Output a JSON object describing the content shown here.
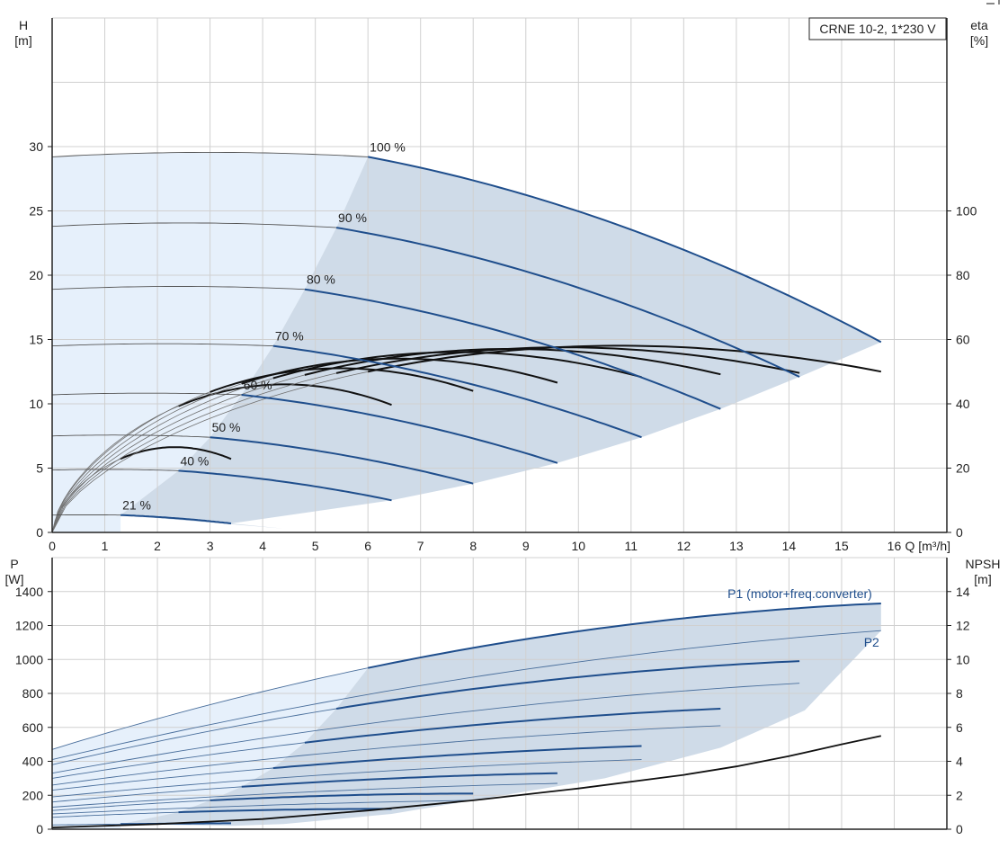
{
  "colors": {
    "accent": "#1f4e8c",
    "region_light": "#e6f0fb",
    "region_dark": "#cfdbe8",
    "grid": "#d0d0d0",
    "black": "#111111",
    "thin": "#707070"
  },
  "chart_data": [
    {
      "type": "line",
      "title": "CRNE 10-2, 1*230 V",
      "xlabel": "Q [m³/h]",
      "ylabel": "H\n[m]",
      "y2label": "eta\n[%]",
      "xlim": [
        0,
        17
      ],
      "ylim": [
        0,
        40
      ],
      "y2lim": [
        0,
        160
      ],
      "x_ticks": [
        0,
        1,
        2,
        3,
        4,
        5,
        6,
        7,
        8,
        9,
        10,
        11,
        12,
        13,
        14,
        15,
        16
      ],
      "x_tick_labels": [
        "0",
        "1",
        "2",
        "3",
        "4",
        "5",
        "6",
        "7",
        "8",
        "9",
        "10",
        "11",
        "12",
        "13",
        "14",
        "15",
        "16"
      ],
      "y_ticks": [
        0,
        5,
        10,
        15,
        20,
        25,
        30
      ],
      "y_tick_labels": [
        "0",
        "5",
        "10",
        "15",
        "20",
        "25",
        "30"
      ],
      "y2_ticks": [
        0,
        20,
        40,
        60,
        80,
        100
      ],
      "y2_tick_labels": [
        "0",
        "20",
        "40",
        "60",
        "80",
        "100"
      ],
      "grid": true,
      "head_curves": [
        {
          "name": "100 %",
          "q0": 0,
          "q_lo": 6.0,
          "q_hi": 15.75,
          "h0": 29.2,
          "h_lo": 29.2,
          "h_hi": 14.8
        },
        {
          "name": "90 %",
          "q0": 0,
          "q_lo": 5.4,
          "q_hi": 14.2,
          "h0": 23.8,
          "h_lo": 23.7,
          "h_hi": 12.1
        },
        {
          "name": "80 %",
          "q0": 0,
          "q_lo": 4.8,
          "q_hi": 12.7,
          "h0": 18.9,
          "h_lo": 18.9,
          "h_hi": 9.6
        },
        {
          "name": "70 %",
          "q0": 0,
          "q_lo": 4.2,
          "q_hi": 11.2,
          "h0": 14.5,
          "h_lo": 14.5,
          "h_hi": 7.4
        },
        {
          "name": "60 %",
          "q0": 0,
          "q_lo": 3.6,
          "q_hi": 9.6,
          "h0": 10.7,
          "h_lo": 10.7,
          "h_hi": 5.4
        },
        {
          "name": "50 %",
          "q0": 0,
          "q_lo": 3.0,
          "q_hi": 8.0,
          "h0": 7.5,
          "h_lo": 7.4,
          "h_hi": 3.8
        },
        {
          "name": "40 %",
          "q0": 0,
          "q_lo": 2.4,
          "q_hi": 6.45,
          "h0": 4.85,
          "h_lo": 4.8,
          "h_hi": 2.5
        },
        {
          "name": "21 %",
          "q0": 0,
          "q_lo": 1.3,
          "q_hi": 3.4,
          "h0": 1.35,
          "h_lo": 1.35,
          "h_hi": 0.7
        }
      ],
      "eta_curves": [
        {
          "q_end": 3.4,
          "eta_peak": 26.5,
          "q_peak": 2.6
        },
        {
          "q_end": 6.45,
          "eta_peak": 46,
          "q_peak": 4.9
        },
        {
          "q_end": 8.0,
          "eta_peak": 51,
          "q_peak": 6.1
        },
        {
          "q_end": 9.6,
          "eta_peak": 54,
          "q_peak": 7.3
        },
        {
          "q_end": 11.2,
          "eta_peak": 56,
          "q_peak": 8.5
        },
        {
          "q_end": 12.7,
          "eta_peak": 57,
          "q_peak": 9.7
        },
        {
          "q_end": 14.2,
          "eta_peak": 57.5,
          "q_peak": 10.9
        },
        {
          "q_end": 15.75,
          "eta_peak": 58,
          "q_peak": 12.1
        }
      ]
    },
    {
      "type": "line",
      "xlabel": "",
      "ylabel": "P\n[W]",
      "y2label": "NPSH\n[m]",
      "xlim": [
        0,
        17
      ],
      "ylim": [
        0,
        1600
      ],
      "y2lim": [
        0,
        16
      ],
      "y_ticks": [
        0,
        200,
        400,
        600,
        800,
        1000,
        1200,
        1400
      ],
      "y_tick_labels": [
        "0",
        "200",
        "400",
        "600",
        "800",
        "1000",
        "1200",
        "1400"
      ],
      "y2_ticks": [
        0,
        2,
        4,
        6,
        8,
        10,
        12,
        14
      ],
      "y2_tick_labels": [
        "0",
        "2",
        "4",
        "6",
        "8",
        "10",
        "12",
        "14"
      ],
      "grid": true,
      "series_labels": {
        "p1": "P1 (motor+freq.converter)",
        "p2": "P2"
      },
      "p1_curves": [
        {
          "q_lo": 6.0,
          "q_hi": 15.75,
          "p0": 470,
          "p_lo": 950,
          "p_hi": 1330
        },
        {
          "q_lo": 5.4,
          "q_hi": 14.2,
          "p0": 380,
          "p_lo": 710,
          "p_hi": 990
        },
        {
          "q_lo": 4.8,
          "q_hi": 12.7,
          "p0": 300,
          "p_lo": 510,
          "p_hi": 710
        },
        {
          "q_lo": 4.2,
          "q_hi": 11.2,
          "p0": 230,
          "p_lo": 360,
          "p_hi": 490
        },
        {
          "q_lo": 3.6,
          "q_hi": 9.6,
          "p0": 160,
          "p_lo": 250,
          "p_hi": 330
        },
        {
          "q_lo": 3.0,
          "q_hi": 8.0,
          "p0": 110,
          "p_lo": 170,
          "p_hi": 210
        },
        {
          "q_lo": 2.4,
          "q_hi": 6.45,
          "p0": 70,
          "p_lo": 100,
          "p_hi": 120
        },
        {
          "q_lo": 1.3,
          "q_hi": 3.4,
          "p0": 25,
          "p_lo": 30,
          "p_hi": 35
        }
      ],
      "p2_curves": [
        {
          "q_hi": 15.75,
          "p0": 410,
          "p_hi": 1170
        },
        {
          "q_hi": 14.2,
          "p0": 330,
          "p_hi": 860
        },
        {
          "q_hi": 12.7,
          "p0": 260,
          "p_hi": 610
        },
        {
          "q_hi": 11.2,
          "p0": 190,
          "p_hi": 410
        },
        {
          "q_hi": 9.6,
          "p0": 130,
          "p_hi": 270
        },
        {
          "q_hi": 8.0,
          "p0": 90,
          "p_hi": 170
        }
      ],
      "npsh": {
        "x": [
          0,
          2,
          4,
          6,
          8,
          10,
          12,
          13,
          14,
          15,
          15.75
        ],
        "y": [
          0.1,
          0.3,
          0.6,
          1.1,
          1.7,
          2.4,
          3.2,
          3.7,
          4.3,
          5.0,
          5.5
        ]
      }
    }
  ]
}
